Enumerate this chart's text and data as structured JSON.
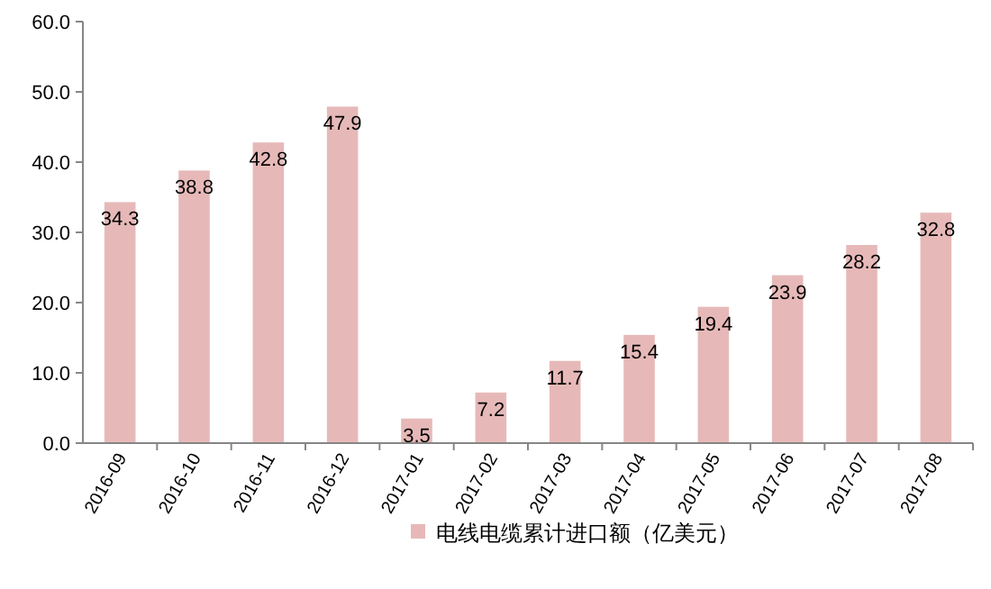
{
  "chart_data": {
    "type": "bar",
    "categories": [
      "2016-09",
      "2016-10",
      "2016-11",
      "2016-12",
      "2017-01",
      "2017-02",
      "2017-03",
      "2017-04",
      "2017-05",
      "2017-06",
      "2017-07",
      "2017-08"
    ],
    "series": [
      {
        "name": "电线电缆累计进口额（亿美元）",
        "color": "#e6b9b8",
        "values": [
          34.3,
          38.8,
          42.8,
          47.9,
          3.5,
          7.2,
          11.7,
          15.4,
          19.4,
          23.9,
          28.2,
          32.8
        ]
      }
    ],
    "ylim": [
      0,
      60
    ],
    "yticks": [
      {
        "value": 0,
        "label": "0.0"
      },
      {
        "value": 10,
        "label": "10.0"
      },
      {
        "value": 20,
        "label": "20.0"
      },
      {
        "value": 30,
        "label": "30.0"
      },
      {
        "value": 40,
        "label": "40.0"
      },
      {
        "value": 50,
        "label": "50.0"
      },
      {
        "value": 60,
        "label": "60.0"
      }
    ],
    "data_labels": true,
    "legend": "bottom",
    "grid": false
  }
}
